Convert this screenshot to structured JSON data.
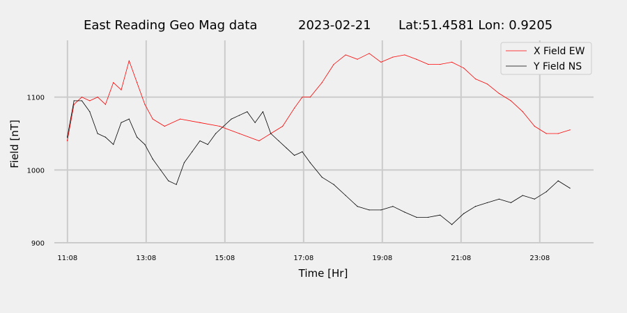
{
  "chart_data": {
    "type": "line",
    "title_parts": [
      "East Reading Geo Mag data",
      "2023-02-21",
      "Lat:51.4581  Lon: 0.9205"
    ],
    "xlabel": "Time  [Hr]",
    "ylabel": "Field  [nT]",
    "x_ticks": [
      "11:08",
      "13:08",
      "15:08",
      "17:08",
      "19:08",
      "21:08",
      "23:08"
    ],
    "y_ticks": [
      900,
      1000,
      1100
    ],
    "ylim": [
      900,
      1178
    ],
    "xlim_hours": [
      10.8,
      24.5
    ],
    "grid": true,
    "legend_position": "top-right",
    "series": [
      {
        "name": "X Field EW",
        "color": "#ff0000",
        "x": [
          11.13,
          11.3,
          11.5,
          11.7,
          11.9,
          12.1,
          12.3,
          12.5,
          12.7,
          12.9,
          13.1,
          13.3,
          13.6,
          14.0,
          14.5,
          15.0,
          15.5,
          16.0,
          16.3,
          16.6,
          16.9,
          17.1,
          17.3,
          17.6,
          17.9,
          18.2,
          18.5,
          18.8,
          19.1,
          19.4,
          19.7,
          20.0,
          20.3,
          20.6,
          20.9,
          21.2,
          21.5,
          21.8,
          22.1,
          22.4,
          22.7,
          23.0,
          23.3,
          23.6,
          23.9
        ],
        "y": [
          1040,
          1090,
          1100,
          1095,
          1100,
          1090,
          1120,
          1110,
          1150,
          1120,
          1090,
          1070,
          1060,
          1070,
          1065,
          1060,
          1050,
          1040,
          1050,
          1060,
          1085,
          1100,
          1100,
          1120,
          1145,
          1158,
          1152,
          1160,
          1148,
          1155,
          1158,
          1152,
          1145,
          1145,
          1148,
          1140,
          1125,
          1118,
          1105,
          1095,
          1080,
          1060,
          1050,
          1050,
          1055
        ]
      },
      {
        "name": "Y Field NS",
        "color": "#000000",
        "x": [
          11.13,
          11.3,
          11.5,
          11.7,
          11.9,
          12.1,
          12.3,
          12.5,
          12.7,
          12.9,
          13.1,
          13.3,
          13.5,
          13.7,
          13.9,
          14.1,
          14.3,
          14.5,
          14.7,
          14.9,
          15.1,
          15.3,
          15.5,
          15.7,
          15.9,
          16.1,
          16.3,
          16.5,
          16.7,
          16.9,
          17.1,
          17.3,
          17.6,
          17.9,
          18.2,
          18.5,
          18.8,
          19.1,
          19.4,
          19.7,
          20.0,
          20.3,
          20.6,
          20.9,
          21.2,
          21.5,
          21.8,
          22.1,
          22.4,
          22.7,
          23.0,
          23.3,
          23.6,
          23.9
        ],
        "y": [
          1045,
          1095,
          1095,
          1080,
          1050,
          1045,
          1035,
          1065,
          1070,
          1045,
          1035,
          1015,
          1000,
          985,
          980,
          1010,
          1025,
          1040,
          1035,
          1050,
          1060,
          1070,
          1075,
          1080,
          1065,
          1080,
          1050,
          1040,
          1030,
          1020,
          1025,
          1010,
          990,
          980,
          965,
          950,
          945,
          945,
          950,
          942,
          935,
          935,
          938,
          925,
          940,
          950,
          955,
          960,
          955,
          965,
          960,
          970,
          985,
          975
        ]
      }
    ]
  }
}
